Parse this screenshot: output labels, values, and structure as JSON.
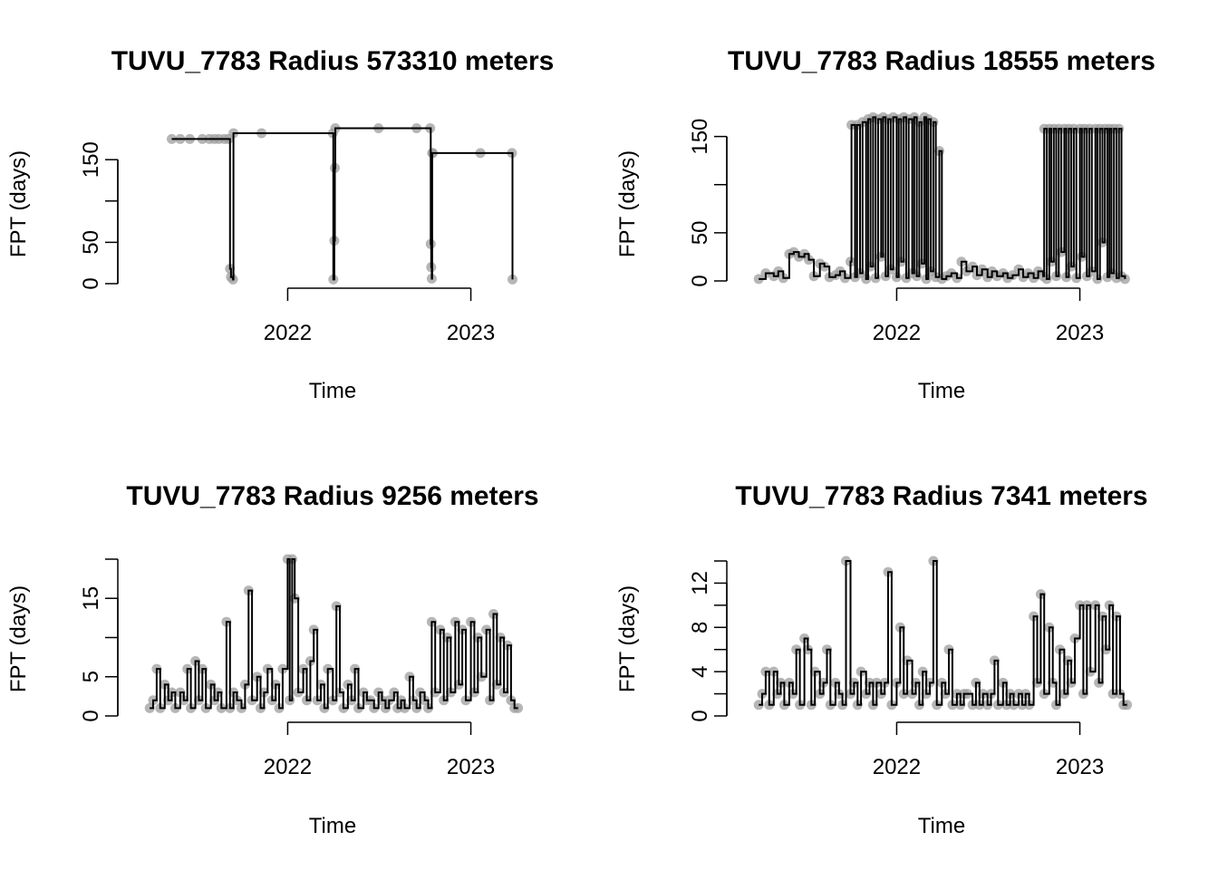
{
  "colors": {
    "line": "#000000",
    "points": "#9e9e9e",
    "points_faint": "#d8d8d8",
    "background": "#ffffff"
  },
  "chart_data": [
    {
      "type": "line",
      "title": "TUVU_7783 Radius 573310 meters",
      "xlabel": "Time",
      "ylabel": "FPT (days)",
      "xlim": [
        "2021-03-01",
        "2023-05-01"
      ],
      "ylim": [
        0,
        182
      ],
      "x_ticks": [
        "2022",
        "2023"
      ],
      "y_ticks": [
        0,
        50,
        150
      ],
      "grid": false,
      "series": [
        {
          "x": [
            "2021-05-15",
            "2021-06-01",
            "2021-06-20",
            "2021-07-15",
            "2021-07-29",
            "2021-08-08",
            "2021-08-17",
            "2021-08-28",
            "2021-09-05",
            "2021-09-08",
            "2021-09-10",
            "2021-09-14",
            "2021-09-15",
            "2021-11-10",
            "2022-04-01",
            "2022-04-02",
            "2022-04-04",
            "2022-04-05",
            "2022-04-06",
            "2022-07-01",
            "2022-09-15",
            "2022-10-12",
            "2022-10-13",
            "2022-10-14",
            "2022-10-15",
            "2022-10-16",
            "2022-10-17",
            "2023-01-20",
            "2023-03-24",
            "2023-03-25"
          ],
          "y": [
            175,
            175,
            175,
            175,
            175,
            175,
            175,
            175,
            175,
            18,
            8,
            5,
            182,
            182,
            182,
            5,
            52,
            140,
            188,
            188,
            188,
            188,
            48,
            20,
            6,
            158,
            158,
            158,
            158,
            5
          ]
        }
      ]
    },
    {
      "type": "line",
      "title": "TUVU_7783 Radius 18555 meters",
      "xlabel": "Time",
      "ylabel": "FPT (days)",
      "xlim": [
        "2021-03-01",
        "2023-05-01"
      ],
      "ylim": [
        0,
        160
      ],
      "x_ticks": [
        "2022",
        "2023"
      ],
      "y_ticks": [
        0,
        50,
        150
      ],
      "grid": false,
      "series": [
        {
          "x": [
            "2021-04-01",
            "2021-04-15",
            "2021-05-01",
            "2021-05-10",
            "2021-05-20",
            "2021-06-01",
            "2021-06-10",
            "2021-06-20",
            "2021-07-01",
            "2021-07-10",
            "2021-07-20",
            "2021-08-01",
            "2021-08-10",
            "2021-08-20",
            "2021-09-01",
            "2021-09-10",
            "2021-09-20",
            "2021-10-01",
            "2021-10-03",
            "2021-10-10",
            "2021-10-14",
            "2021-10-20",
            "2021-10-25",
            "2021-11-01",
            "2021-11-05",
            "2021-11-10",
            "2021-11-15",
            "2021-11-20",
            "2021-11-25",
            "2021-12-01",
            "2021-12-05",
            "2021-12-10",
            "2021-12-15",
            "2021-12-20",
            "2021-12-25",
            "2022-01-01",
            "2022-01-05",
            "2022-01-10",
            "2022-01-15",
            "2022-01-20",
            "2022-01-25",
            "2022-02-01",
            "2022-02-05",
            "2022-02-10",
            "2022-02-15",
            "2022-02-20",
            "2022-02-25",
            "2022-03-01",
            "2022-03-05",
            "2022-03-10",
            "2022-03-15",
            "2022-03-20",
            "2022-03-27",
            "2022-04-01",
            "2022-04-10",
            "2022-04-20",
            "2022-05-01",
            "2022-05-10",
            "2022-05-20",
            "2022-06-01",
            "2022-06-10",
            "2022-06-20",
            "2022-07-01",
            "2022-07-10",
            "2022-07-20",
            "2022-08-01",
            "2022-08-10",
            "2022-08-20",
            "2022-09-01",
            "2022-09-10",
            "2022-09-20",
            "2022-10-01",
            "2022-10-10",
            "2022-10-20",
            "2022-10-22",
            "2022-10-27",
            "2022-11-01",
            "2022-11-05",
            "2022-11-10",
            "2022-11-15",
            "2022-11-20",
            "2022-11-25",
            "2022-12-01",
            "2022-12-05",
            "2022-12-10",
            "2022-12-15",
            "2022-12-20",
            "2022-12-25",
            "2023-01-01",
            "2023-01-05",
            "2023-01-10",
            "2023-01-15",
            "2023-01-20",
            "2023-01-25",
            "2023-02-01",
            "2023-02-05",
            "2023-02-10",
            "2023-02-15",
            "2023-02-20",
            "2023-02-25",
            "2023-03-01",
            "2023-03-05",
            "2023-03-10",
            "2023-03-15",
            "2023-03-20",
            "2023-03-25",
            "2023-04-01"
          ],
          "y": [
            2,
            8,
            5,
            10,
            3,
            28,
            30,
            25,
            28,
            22,
            5,
            18,
            15,
            4,
            6,
            10,
            3,
            20,
            162,
            4,
            162,
            8,
            165,
            2,
            168,
            15,
            170,
            3,
            168,
            25,
            170,
            5,
            168,
            12,
            170,
            4,
            168,
            20,
            170,
            3,
            168,
            8,
            170,
            5,
            165,
            18,
            170,
            2,
            168,
            10,
            165,
            4,
            135,
            2,
            5,
            8,
            3,
            20,
            10,
            15,
            6,
            12,
            4,
            10,
            5,
            8,
            3,
            6,
            12,
            4,
            8,
            3,
            10,
            5,
            158,
            2,
            158,
            20,
            158,
            5,
            158,
            30,
            158,
            4,
            158,
            15,
            158,
            3,
            158,
            25,
            158,
            5,
            158,
            10,
            158,
            2,
            158,
            40,
            158,
            4,
            158,
            8,
            158,
            3,
            158,
            5,
            2
          ]
        }
      ]
    },
    {
      "type": "line",
      "title": "TUVU_7783 Radius 9256 meters",
      "xlabel": "Time",
      "ylabel": "FPT (days)",
      "xlim": [
        "2021-03-01",
        "2023-05-01"
      ],
      "ylim": [
        0,
        20
      ],
      "x_ticks": [
        "2022",
        "2023"
      ],
      "y_ticks": [
        0,
        5,
        15
      ],
      "grid": false,
      "series": [
        {
          "x": [
            "2021-04-01",
            "2021-04-08",
            "2021-04-15",
            "2021-04-22",
            "2021-05-01",
            "2021-05-08",
            "2021-05-15",
            "2021-05-22",
            "2021-06-01",
            "2021-06-08",
            "2021-06-15",
            "2021-06-22",
            "2021-07-01",
            "2021-07-08",
            "2021-07-15",
            "2021-07-22",
            "2021-08-01",
            "2021-08-08",
            "2021-08-15",
            "2021-08-22",
            "2021-09-01",
            "2021-09-08",
            "2021-09-15",
            "2021-09-22",
            "2021-10-01",
            "2021-10-08",
            "2021-10-15",
            "2021-10-22",
            "2021-11-01",
            "2021-11-08",
            "2021-11-15",
            "2021-11-22",
            "2021-12-01",
            "2021-12-08",
            "2021-12-15",
            "2021-12-22",
            "2022-01-01",
            "2022-01-05",
            "2022-01-10",
            "2022-01-15",
            "2022-01-22",
            "2022-02-01",
            "2022-02-08",
            "2022-02-15",
            "2022-02-22",
            "2022-03-01",
            "2022-03-08",
            "2022-03-15",
            "2022-03-22",
            "2022-04-01",
            "2022-04-08",
            "2022-04-15",
            "2022-04-22",
            "2022-05-01",
            "2022-05-08",
            "2022-05-15",
            "2022-05-22",
            "2022-06-01",
            "2022-06-08",
            "2022-06-15",
            "2022-06-22",
            "2022-07-01",
            "2022-07-08",
            "2022-07-15",
            "2022-07-22",
            "2022-08-01",
            "2022-08-08",
            "2022-08-15",
            "2022-08-22",
            "2022-09-01",
            "2022-09-08",
            "2022-09-15",
            "2022-09-22",
            "2022-10-01",
            "2022-10-08",
            "2022-10-15",
            "2022-10-22",
            "2022-11-01",
            "2022-11-08",
            "2022-11-15",
            "2022-11-22",
            "2022-12-01",
            "2022-12-08",
            "2022-12-15",
            "2022-12-22",
            "2023-01-01",
            "2023-01-08",
            "2023-01-15",
            "2023-01-22",
            "2023-02-01",
            "2023-02-08",
            "2023-02-15",
            "2023-02-22",
            "2023-03-01",
            "2023-03-08",
            "2023-03-15",
            "2023-03-22",
            "2023-03-29",
            "2023-04-05"
          ],
          "y": [
            1,
            2,
            6,
            1,
            4,
            2,
            3,
            1,
            3,
            2,
            6,
            1,
            7,
            2,
            6,
            1,
            4,
            2,
            3,
            1,
            12,
            1,
            3,
            2,
            1,
            4,
            16,
            2,
            5,
            1,
            3,
            6,
            2,
            4,
            1,
            6,
            20,
            2,
            20,
            15,
            3,
            6,
            2,
            7,
            11,
            2,
            4,
            1,
            6,
            2,
            14,
            3,
            1,
            4,
            2,
            6,
            1,
            3,
            2,
            2,
            1,
            3,
            2,
            1,
            2,
            3,
            1,
            2,
            1,
            5,
            2,
            1,
            3,
            2,
            1,
            12,
            3,
            11,
            2,
            10,
            3,
            12,
            4,
            11,
            2,
            12,
            3,
            10,
            5,
            11,
            2,
            13,
            4,
            10,
            3,
            9,
            2,
            1,
            1
          ]
        }
      ]
    },
    {
      "type": "line",
      "title": "TUVU_7783 Radius 7341 meters",
      "xlabel": "Time",
      "ylabel": "FPT (days)",
      "xlim": [
        "2021-03-01",
        "2023-05-01"
      ],
      "ylim": [
        0,
        14
      ],
      "x_ticks": [
        "2022",
        "2023"
      ],
      "y_ticks": [
        0,
        4,
        8,
        12
      ],
      "grid": false,
      "series": [
        {
          "x": [
            "2021-04-01",
            "2021-04-08",
            "2021-04-15",
            "2021-04-22",
            "2021-05-01",
            "2021-05-08",
            "2021-05-15",
            "2021-05-22",
            "2021-06-01",
            "2021-06-08",
            "2021-06-15",
            "2021-06-22",
            "2021-07-01",
            "2021-07-08",
            "2021-07-15",
            "2021-07-22",
            "2021-08-01",
            "2021-08-08",
            "2021-08-15",
            "2021-08-22",
            "2021-09-01",
            "2021-09-08",
            "2021-09-15",
            "2021-09-22",
            "2021-10-01",
            "2021-10-08",
            "2021-10-15",
            "2021-10-22",
            "2021-11-01",
            "2021-11-08",
            "2021-11-15",
            "2021-11-22",
            "2021-12-01",
            "2021-12-08",
            "2021-12-15",
            "2021-12-22",
            "2022-01-01",
            "2022-01-08",
            "2022-01-15",
            "2022-01-22",
            "2022-02-01",
            "2022-02-08",
            "2022-02-15",
            "2022-02-22",
            "2022-03-01",
            "2022-03-08",
            "2022-03-15",
            "2022-03-22",
            "2022-04-01",
            "2022-04-08",
            "2022-04-15",
            "2022-04-22",
            "2022-05-01",
            "2022-05-08",
            "2022-05-15",
            "2022-05-22",
            "2022-06-01",
            "2022-06-08",
            "2022-06-15",
            "2022-06-22",
            "2022-07-01",
            "2022-07-08",
            "2022-07-15",
            "2022-07-22",
            "2022-08-01",
            "2022-08-08",
            "2022-08-15",
            "2022-08-22",
            "2022-09-01",
            "2022-09-08",
            "2022-09-15",
            "2022-09-22",
            "2022-10-01",
            "2022-10-08",
            "2022-10-15",
            "2022-10-22",
            "2022-11-01",
            "2022-11-08",
            "2022-11-15",
            "2022-11-22",
            "2022-12-01",
            "2022-12-08",
            "2022-12-15",
            "2022-12-22",
            "2023-01-01",
            "2023-01-08",
            "2023-01-15",
            "2023-01-22",
            "2023-02-01",
            "2023-02-08",
            "2023-02-15",
            "2023-02-22",
            "2023-03-01",
            "2023-03-08",
            "2023-03-15",
            "2023-03-22",
            "2023-03-29",
            "2023-04-05"
          ],
          "y": [
            1,
            2,
            4,
            1,
            4,
            2,
            3,
            1,
            3,
            2,
            6,
            1,
            7,
            6,
            1,
            4,
            2,
            3,
            6,
            1,
            3,
            2,
            1,
            14,
            2,
            3,
            1,
            4,
            2,
            3,
            1,
            3,
            2,
            3,
            13,
            1,
            3,
            8,
            2,
            5,
            2,
            3,
            1,
            4,
            2,
            3,
            14,
            1,
            3,
            2,
            6,
            1,
            2,
            1,
            2,
            2,
            1,
            3,
            1,
            2,
            1,
            2,
            5,
            1,
            3,
            1,
            2,
            1,
            2,
            1,
            2,
            1,
            9,
            3,
            11,
            2,
            8,
            3,
            1,
            6,
            2,
            5,
            3,
            7,
            10,
            2,
            10,
            4,
            10,
            3,
            9,
            6,
            10,
            2,
            9,
            2,
            1,
            1
          ]
        }
      ]
    }
  ]
}
